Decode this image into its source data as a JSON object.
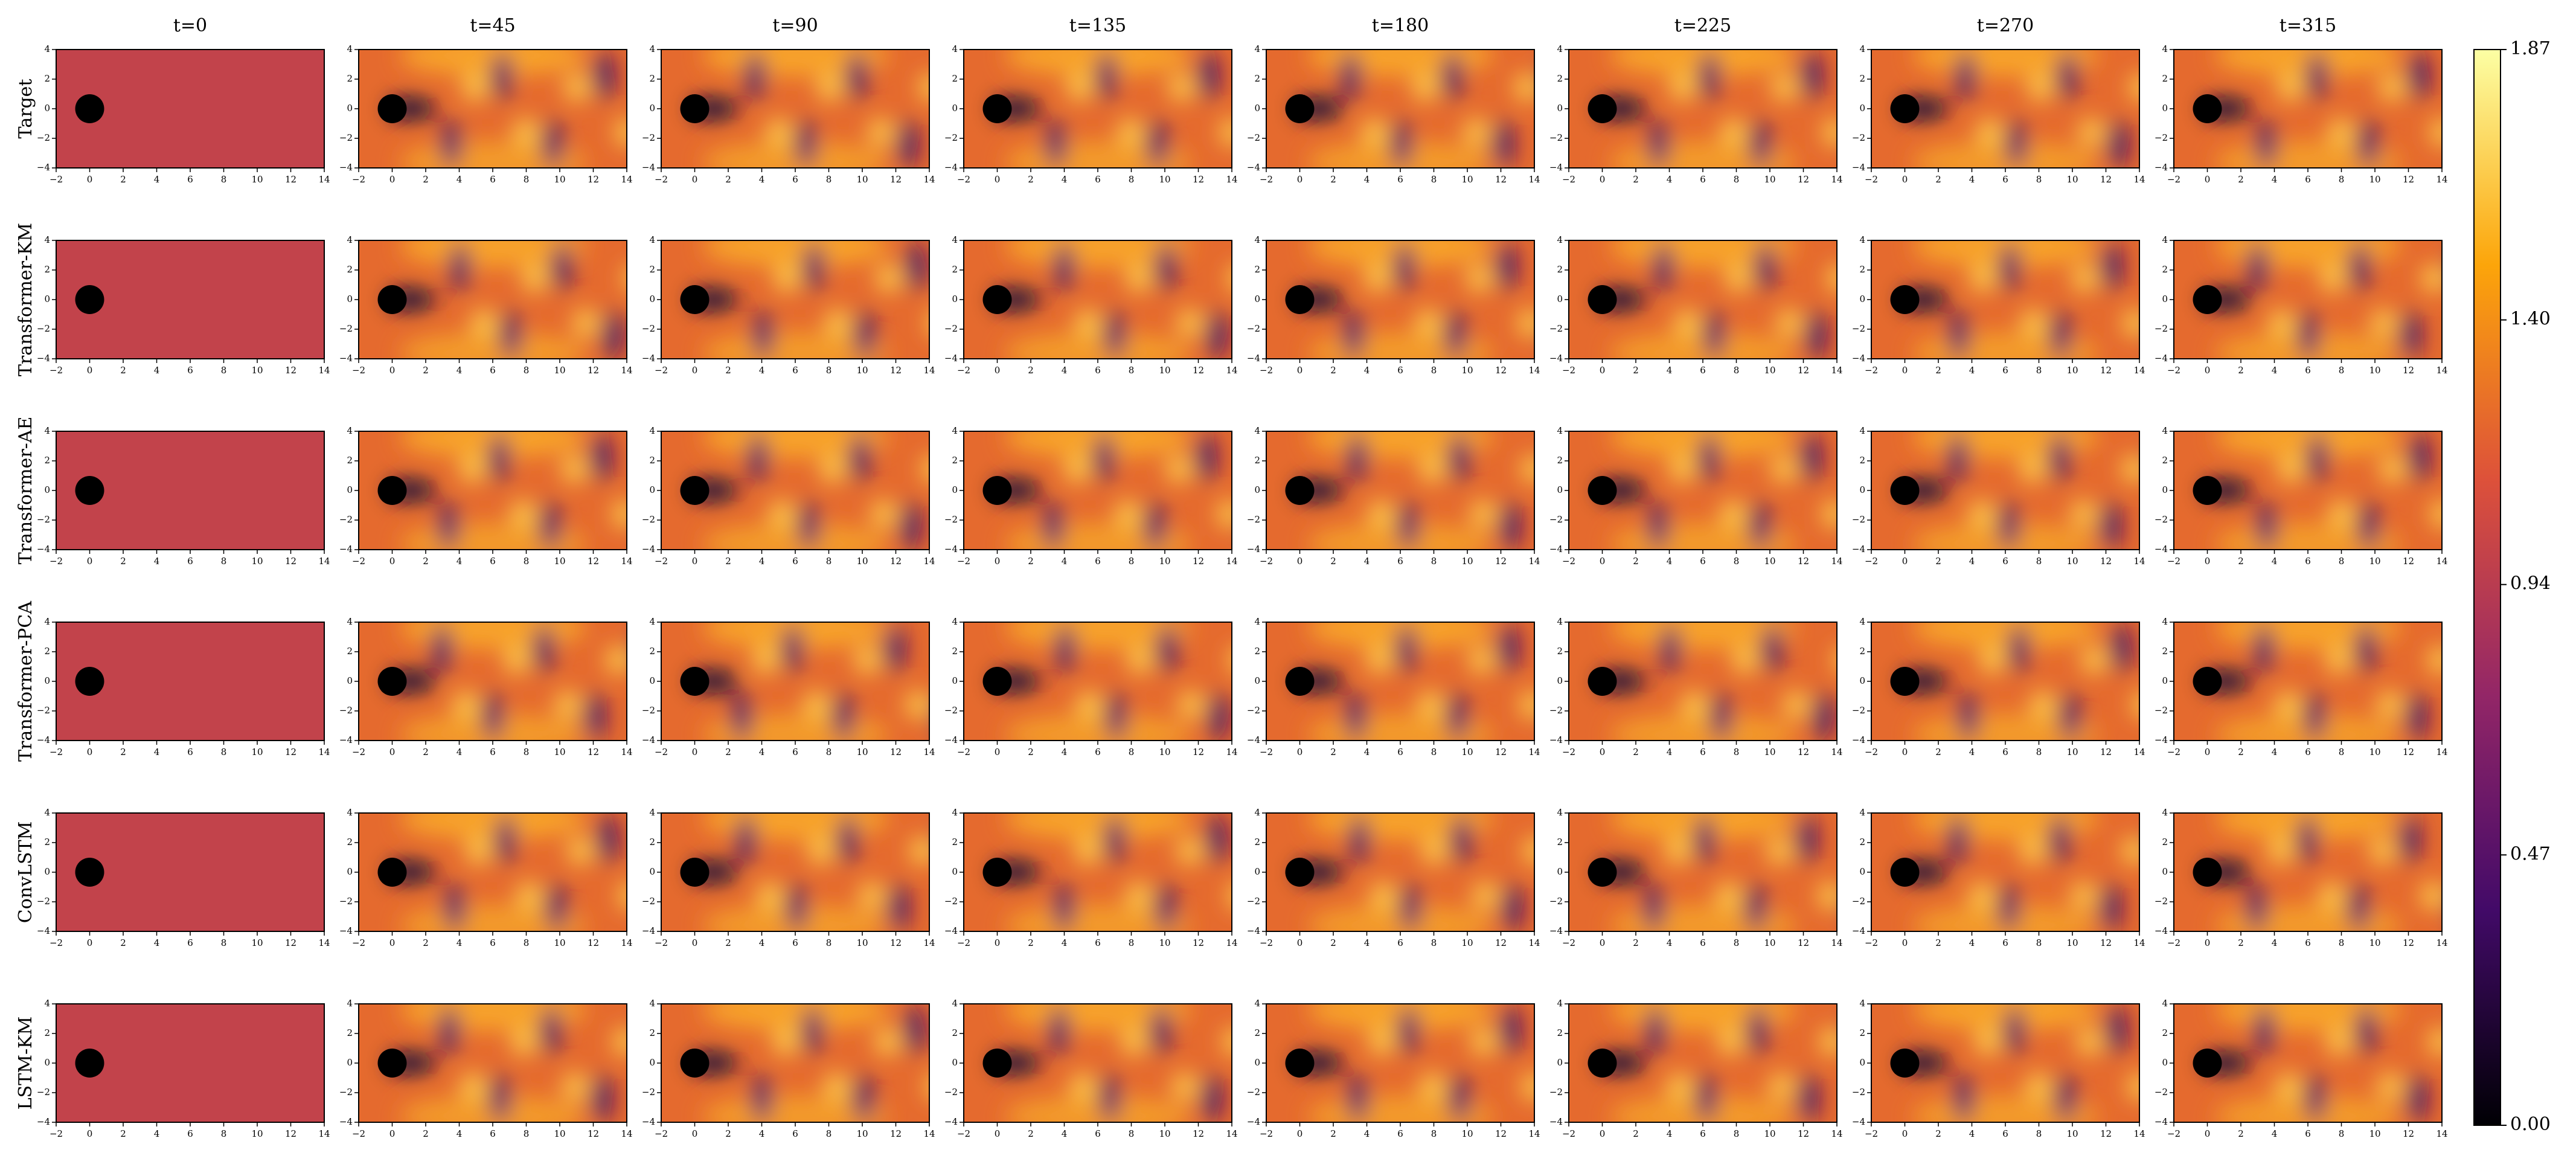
{
  "chart_data": {
    "type": "heatmap-grid",
    "columns": [
      "t=0",
      "t=45",
      "t=90",
      "t=135",
      "t=180",
      "t=225",
      "t=270",
      "t=315"
    ],
    "rows": [
      "Target",
      "Transformer-KM",
      "Transformer-AE",
      "Transformer-PCA",
      "ConvLSTM",
      "LSTM-KM"
    ],
    "xlim": [
      -2,
      14
    ],
    "xticks": [
      {
        "value": -2,
        "label": "−2"
      },
      0,
      2,
      4,
      6,
      8,
      10,
      12,
      14
    ],
    "ylim": [
      -4,
      4
    ],
    "yticks": [
      {
        "value": -4,
        "label": "−4"
      },
      {
        "value": -2,
        "label": "−2"
      },
      0,
      2,
      4
    ],
    "colorbar": {
      "lim": [
        0,
        1.87
      ],
      "ticks": [
        {
          "value": 0,
          "label": "0.00"
        },
        0.47,
        0.94,
        {
          "value": 1.4,
          "label": "1.40"
        },
        1.87
      ],
      "colors": [
        "#000004",
        "#420a68",
        "#932667",
        "#dd513a",
        "#fca50a",
        "#fcffa4"
      ]
    }
  }
}
